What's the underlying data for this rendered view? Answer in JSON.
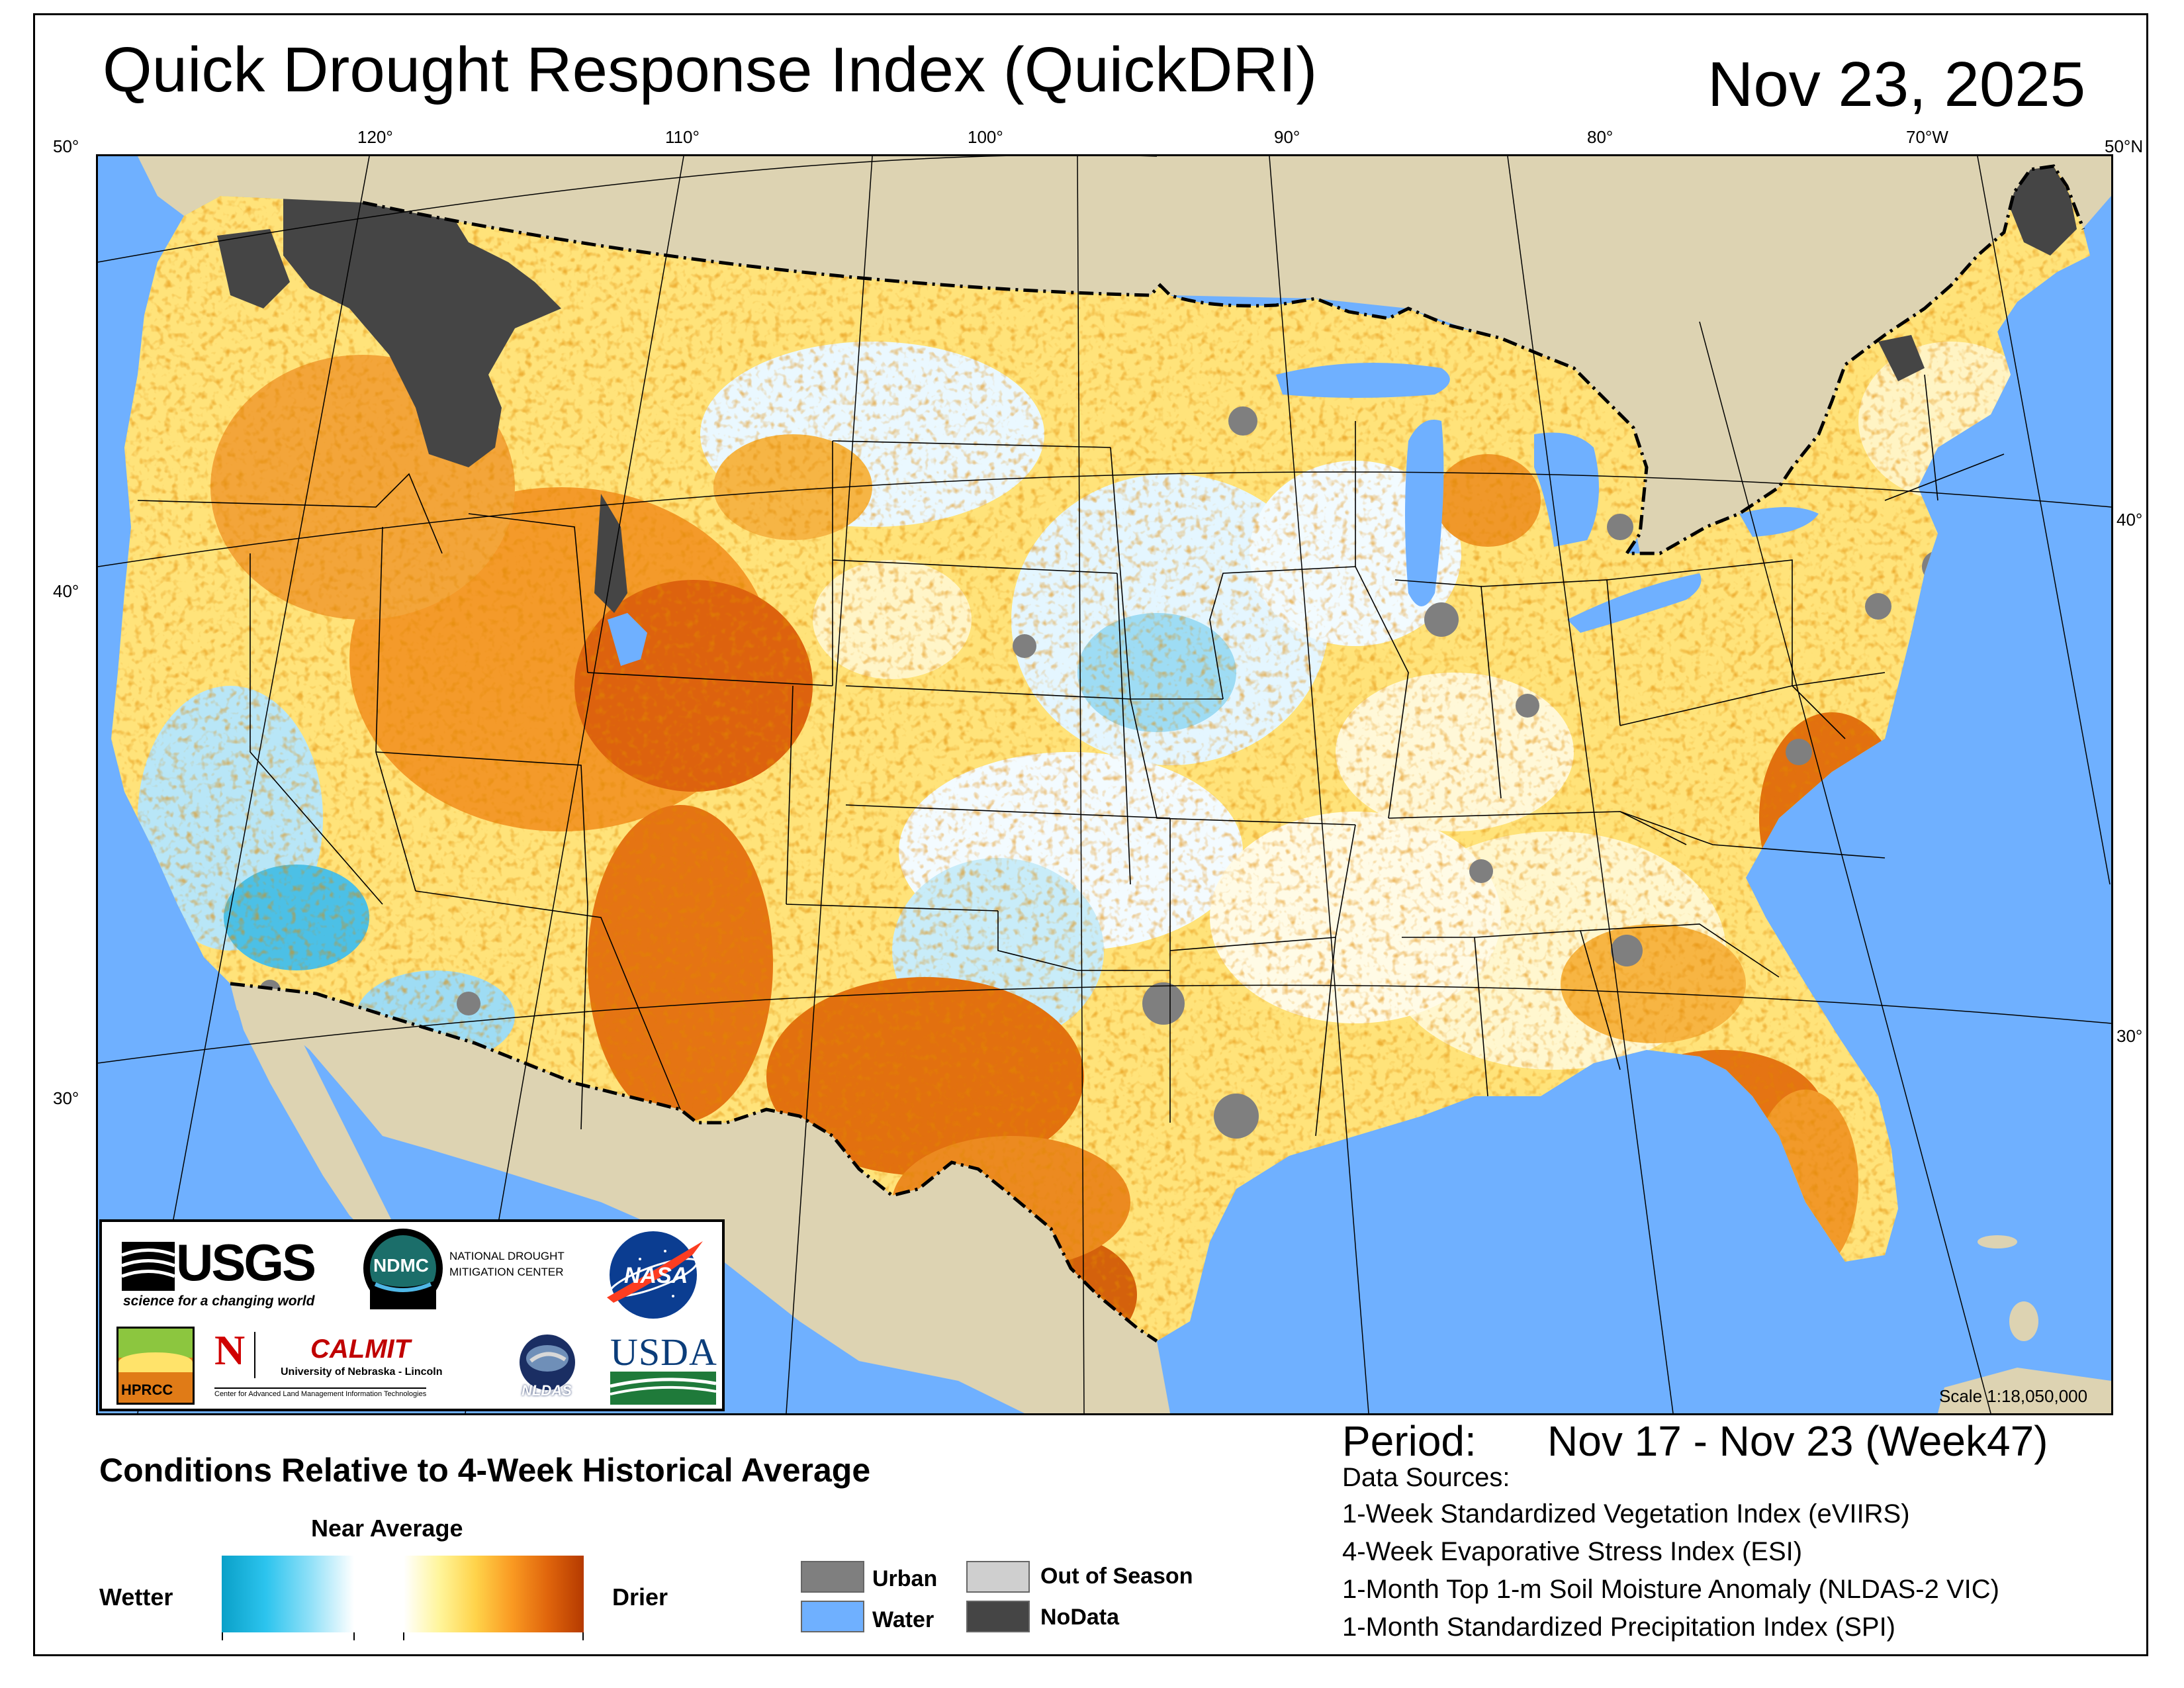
{
  "header": {
    "title": "Quick Drought Response Index (QuickDRI)",
    "date": "Nov 23, 2025"
  },
  "map": {
    "longitude_labels": [
      "50°",
      "120°",
      "110°",
      "100°",
      "90°",
      "80°",
      "70°W",
      "50°N"
    ],
    "latitude_labels_left": [
      "40°",
      "30°"
    ],
    "latitude_labels_right": [
      "40°",
      "30°"
    ],
    "scale": "Scale 1:18,050,000"
  },
  "logos": {
    "usgs": "USGS",
    "usgs_tagline": "science for a changing world",
    "ndmc": "NDMC",
    "ndmc_line1": "NATIONAL DROUGHT",
    "ndmc_line2": "MITIGATION CENTER",
    "nasa": "NASA",
    "hprcc": "HPRCC",
    "calmit": "CALMIT",
    "calmit_line1": "University of Nebraska - Lincoln",
    "calmit_line2": "Center for Advanced Land Management Information Technologies",
    "nldas": "NLDAS",
    "usda": "USDA"
  },
  "legend": {
    "heading": "Conditions Relative to 4-Week Historical Average",
    "near_average": "Near Average",
    "wetter": "Wetter",
    "drier": "Drier",
    "swatches": [
      {
        "label": "Urban",
        "color": "#7f7f7f"
      },
      {
        "label": "Water",
        "color": "#6fb0ff"
      },
      {
        "label": "Out of Season",
        "color": "#cfcfcf"
      },
      {
        "label": "NoData",
        "color": "#454545"
      }
    ]
  },
  "info": {
    "period_label": "Period:",
    "period_value": "Nov 17 - Nov 23 (Week47)",
    "sources_title": "Data Sources:",
    "sources": [
      "1-Week Standardized Vegetation Index (eVIIRS)",
      "4-Week Evaporative Stress Index (ESI)",
      "1-Month Top 1-m Soil Moisture Anomaly (NLDAS-2 VIC)",
      "1-Month Standardized Precipitation Index (SPI)"
    ]
  },
  "colors": {
    "ocean": "#6fb0ff",
    "foreign_land": "#ddd3b2",
    "wetter": "#0aa0c8",
    "drier": "#b53a00",
    "near_average": "#ffffff"
  }
}
